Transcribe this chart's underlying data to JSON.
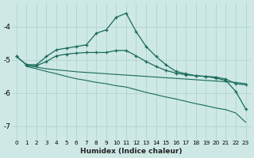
{
  "xlabel": "Humidex (Indice chaleur)",
  "background_color": "#cde8e5",
  "grid_color": "#aecfcc",
  "line_color": "#1a6b5a",
  "x_values": [
    0,
    1,
    2,
    3,
    4,
    5,
    6,
    7,
    8,
    9,
    10,
    11,
    12,
    13,
    14,
    15,
    16,
    17,
    18,
    19,
    20,
    21,
    22,
    23
  ],
  "line1": [
    -4.9,
    -5.15,
    -5.15,
    -4.9,
    -4.7,
    -4.65,
    -4.6,
    -4.55,
    -4.2,
    -4.1,
    -3.72,
    -3.6,
    -4.15,
    -4.6,
    -4.9,
    -5.15,
    -5.35,
    -5.42,
    -5.48,
    -5.5,
    -5.55,
    -5.62,
    -5.95,
    -6.48
  ],
  "line2": [
    -4.9,
    -5.15,
    -5.18,
    -5.05,
    -4.88,
    -4.83,
    -4.8,
    -4.78,
    -4.78,
    -4.78,
    -4.72,
    -4.72,
    -4.88,
    -5.05,
    -5.2,
    -5.32,
    -5.4,
    -5.45,
    -5.48,
    -5.5,
    -5.52,
    -5.58,
    -5.72,
    -5.75
  ],
  "line3": [
    -5.15,
    -5.18,
    -5.22,
    -5.27,
    -5.3,
    -5.33,
    -5.36,
    -5.38,
    -5.4,
    -5.42,
    -5.44,
    -5.46,
    -5.48,
    -5.5,
    -5.52,
    -5.54,
    -5.56,
    -5.58,
    -5.6,
    -5.62,
    -5.64,
    -5.66,
    -5.68,
    -5.72
  ],
  "line4": [
    -5.15,
    -5.2,
    -5.27,
    -5.35,
    -5.42,
    -5.5,
    -5.57,
    -5.62,
    -5.68,
    -5.72,
    -5.78,
    -5.82,
    -5.9,
    -5.98,
    -6.05,
    -6.12,
    -6.18,
    -6.25,
    -6.32,
    -6.38,
    -6.45,
    -6.5,
    -6.6,
    -6.88
  ],
  "ylim": [
    -7.4,
    -3.3
  ],
  "yticks": [
    -7,
    -6,
    -5,
    -4
  ],
  "xlim": [
    -0.5,
    23.5
  ],
  "figsize": [
    3.2,
    2.0
  ],
  "dpi": 100
}
